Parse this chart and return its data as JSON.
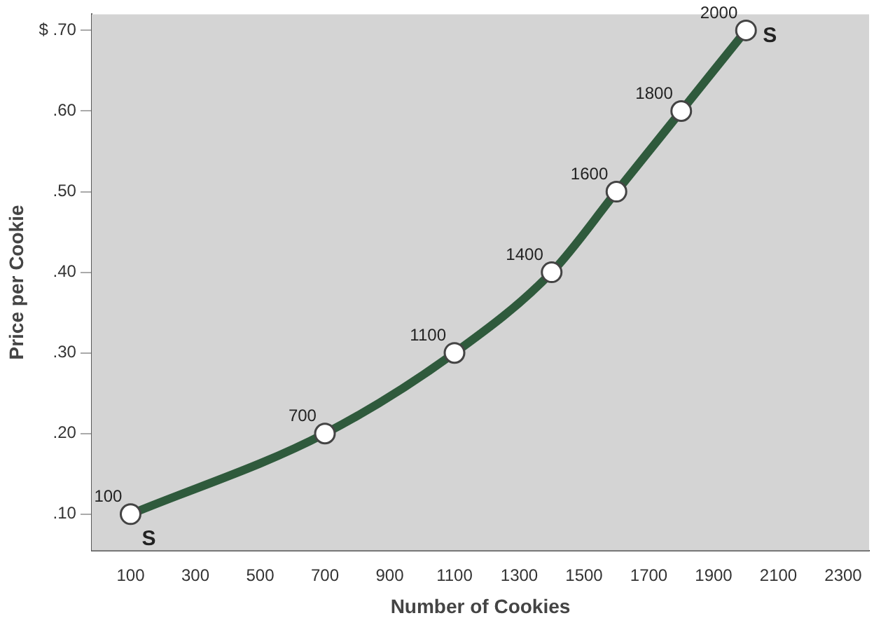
{
  "chart_data": {
    "type": "line",
    "xlabel": "Number of Cookies",
    "ylabel": "Price per Cookie",
    "x": [
      100,
      700,
      1100,
      1400,
      1600,
      1800,
      2000
    ],
    "series": [
      {
        "color": "#2f5a3c",
        "values": [
          0.1,
          0.2,
          0.3,
          0.4,
          0.5,
          0.6,
          0.7
        ]
      }
    ],
    "xlim": [
      -20,
      2380
    ],
    "xticks": [
      100,
      300,
      500,
      700,
      900,
      1100,
      1300,
      1500,
      1700,
      1900,
      2100,
      2300
    ],
    "ylim": [
      0.055,
      0.72
    ],
    "yticks": [
      {
        "value": 0.1,
        "label": ".10"
      },
      {
        "value": 0.2,
        "label": ".20"
      },
      {
        "value": 0.3,
        "label": ".30"
      },
      {
        "value": 0.4,
        "label": ".40"
      },
      {
        "value": 0.5,
        "label": ".50"
      },
      {
        "value": 0.6,
        "label": ".60"
      },
      {
        "value": 0.7,
        "label": "$ .70"
      }
    ],
    "annotations": [
      {
        "text": "100",
        "x": 100,
        "y": 0.1
      },
      {
        "text": "700",
        "x": 700,
        "y": 0.2
      },
      {
        "text": "1100",
        "x": 1100,
        "y": 0.3
      },
      {
        "text": "1400",
        "x": 1400,
        "y": 0.4
      },
      {
        "text": "1600",
        "x": 1600,
        "y": 0.5
      },
      {
        "text": "1800",
        "x": 1800,
        "y": 0.6
      },
      {
        "text": "2000",
        "x": 2000,
        "y": 0.7
      },
      {
        "text": "S",
        "x": 100,
        "y": 0.1
      },
      {
        "text": "S",
        "x": 2000,
        "y": 0.7
      }
    ],
    "grid": false,
    "legend": false,
    "marker": "circle",
    "line_style": "solid"
  }
}
